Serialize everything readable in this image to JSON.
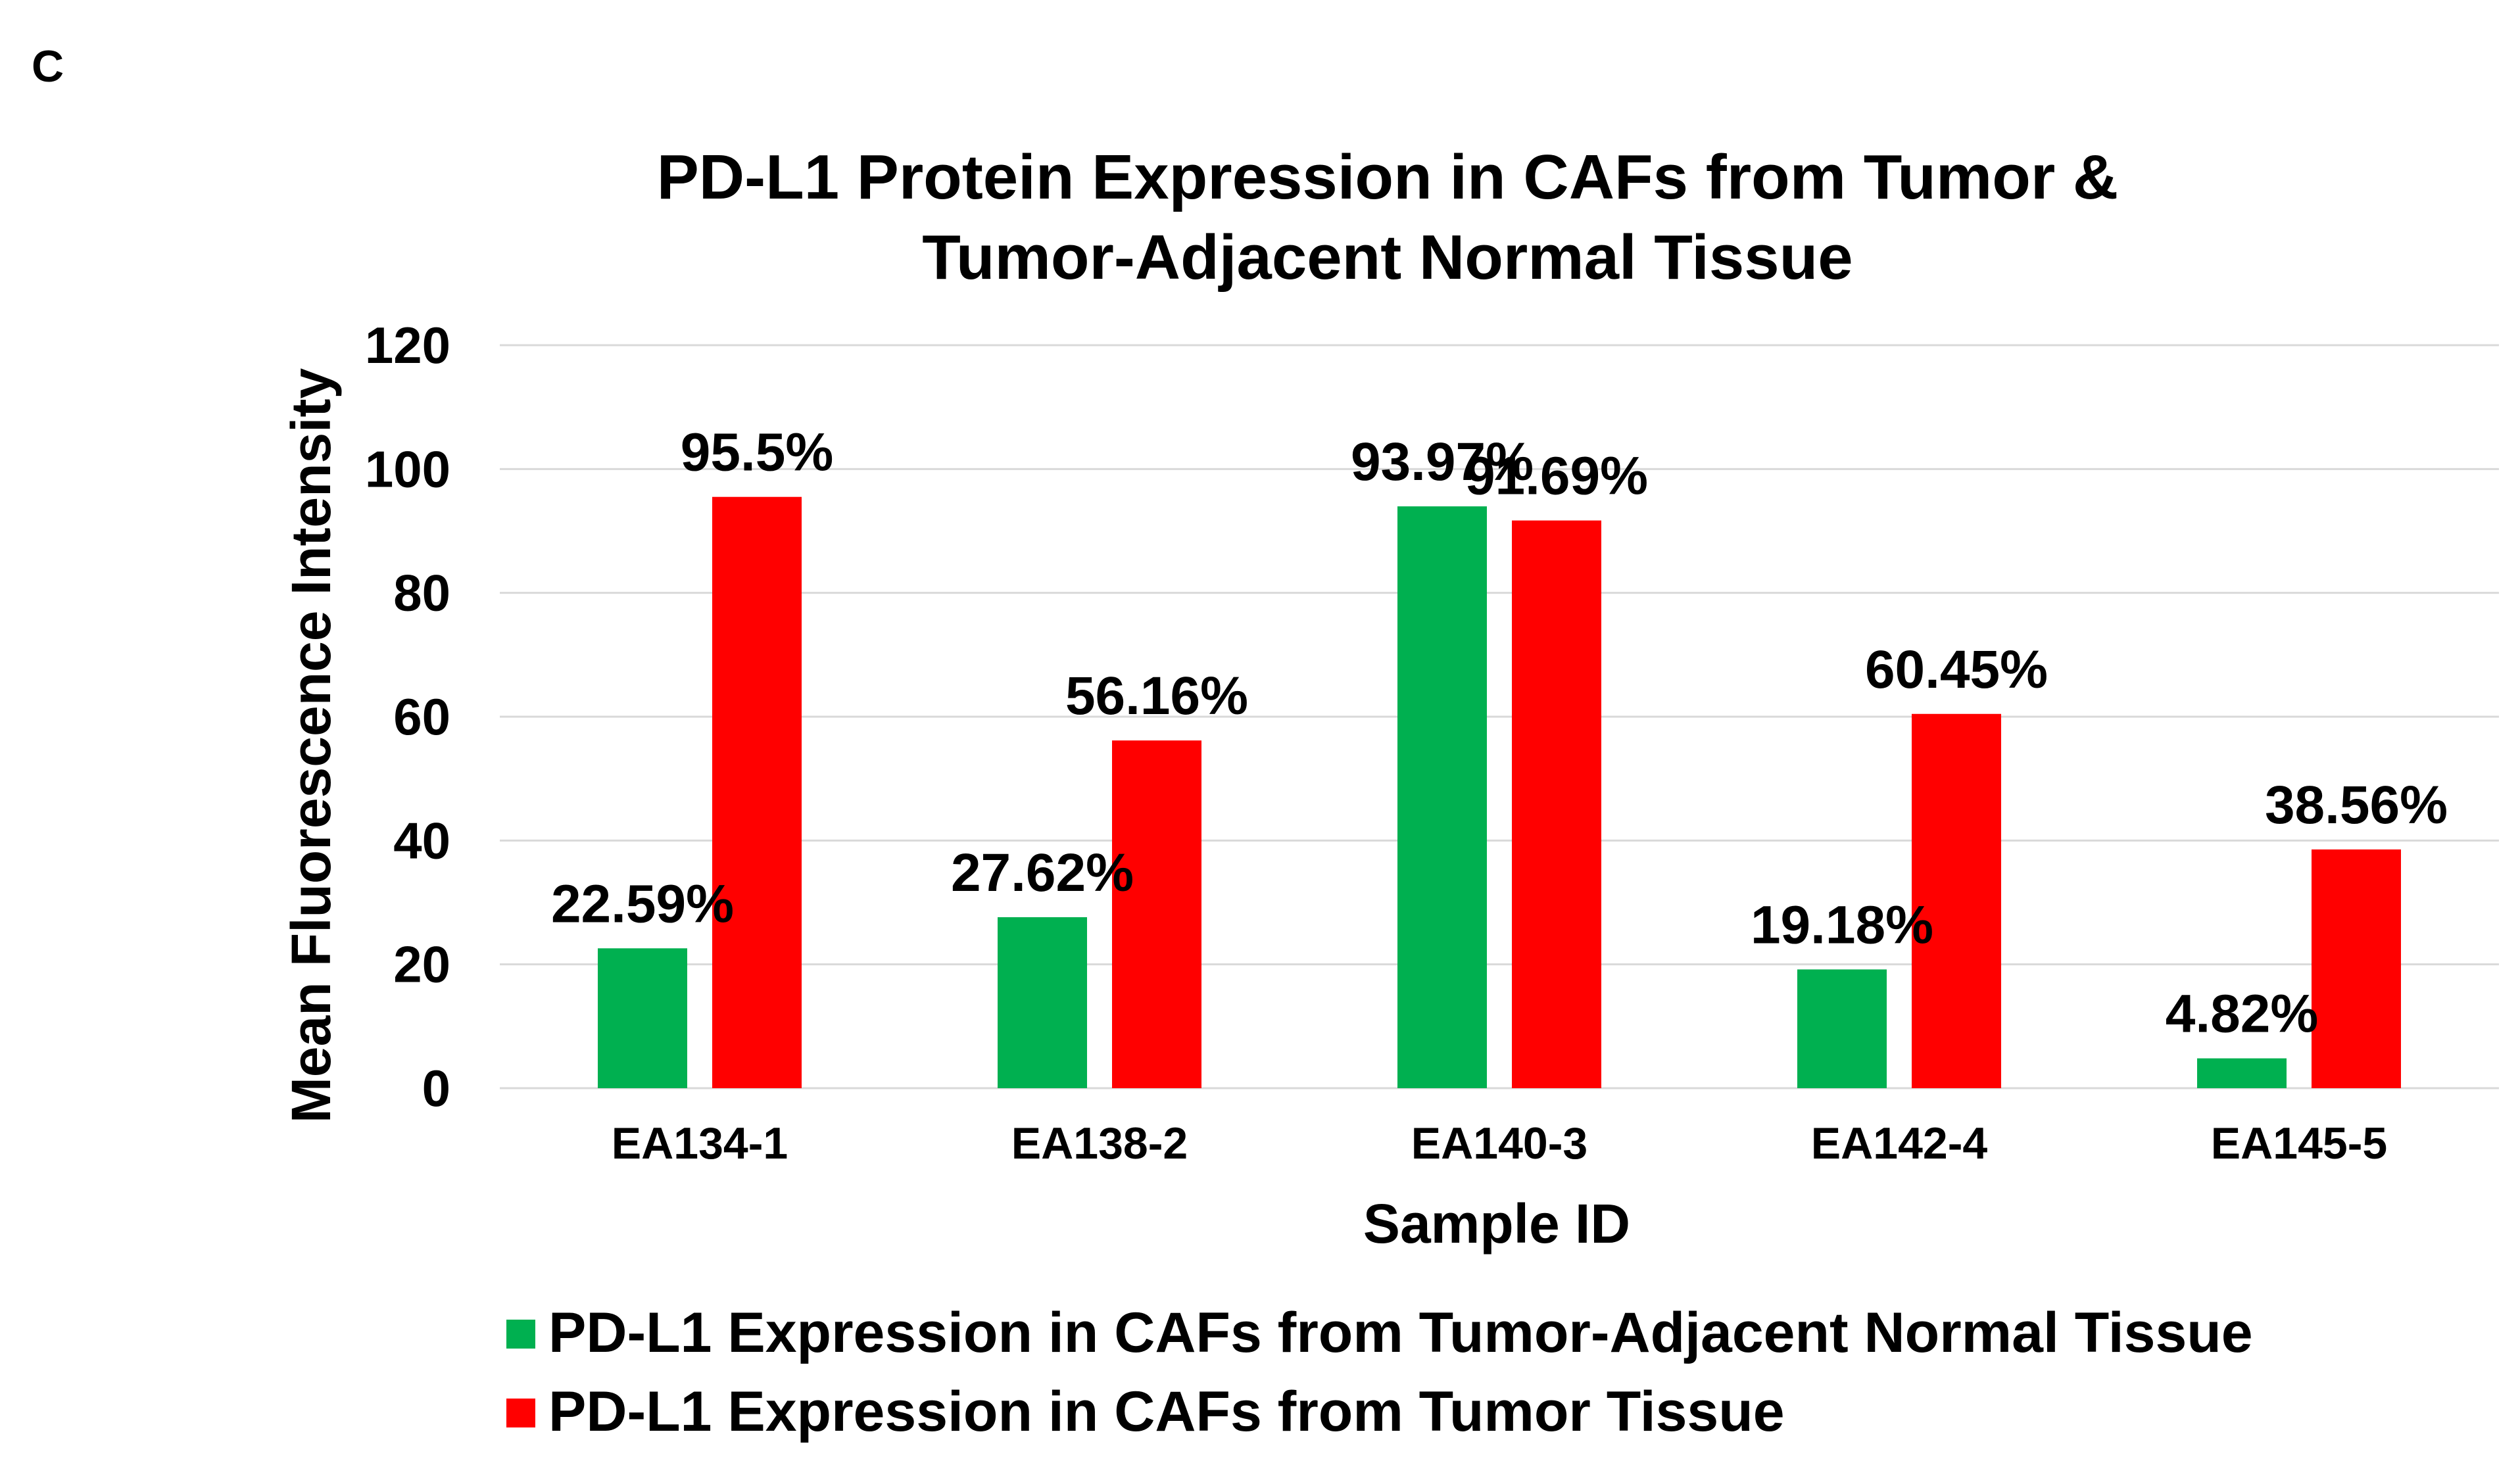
{
  "panel_label": "C",
  "chart_data": {
    "type": "bar",
    "title": "PD-L1 Protein Expression in CAFs from Tumor & Tumor-Adjacent Normal Tissue",
    "title_lines": [
      "PD-L1 Protein Expression in CAFs from Tumor &",
      "Tumor-Adjacent Normal Tissue"
    ],
    "xlabel": "Sample ID",
    "ylabel": "Mean Fluorescence Intensity",
    "ylim": [
      0,
      120
    ],
    "yticks": [
      0,
      20,
      40,
      60,
      80,
      100,
      120
    ],
    "grid": true,
    "legend_position": "bottom",
    "categories": [
      "EA134-1",
      "EA138-2",
      "EA140-3",
      "EA142-4",
      "EA145-5"
    ],
    "series": [
      {
        "name": "PD-L1 Expression in CAFs from Tumor-Adjacent Normal Tissue",
        "color": "#00b050",
        "values": [
          22.59,
          27.62,
          93.97,
          19.18,
          4.82
        ],
        "labels": [
          "22.59%",
          "27.62%",
          "93.97%",
          "19.18%",
          "4.82%"
        ]
      },
      {
        "name": "PD-L1 Expression in CAFs from Tumor Tissue",
        "color": "#ff0000",
        "values": [
          95.5,
          56.16,
          91.69,
          60.45,
          38.56
        ],
        "labels": [
          "95.5%",
          "56.16%",
          "91.69%",
          "60.45%",
          "38.56%"
        ]
      }
    ]
  }
}
